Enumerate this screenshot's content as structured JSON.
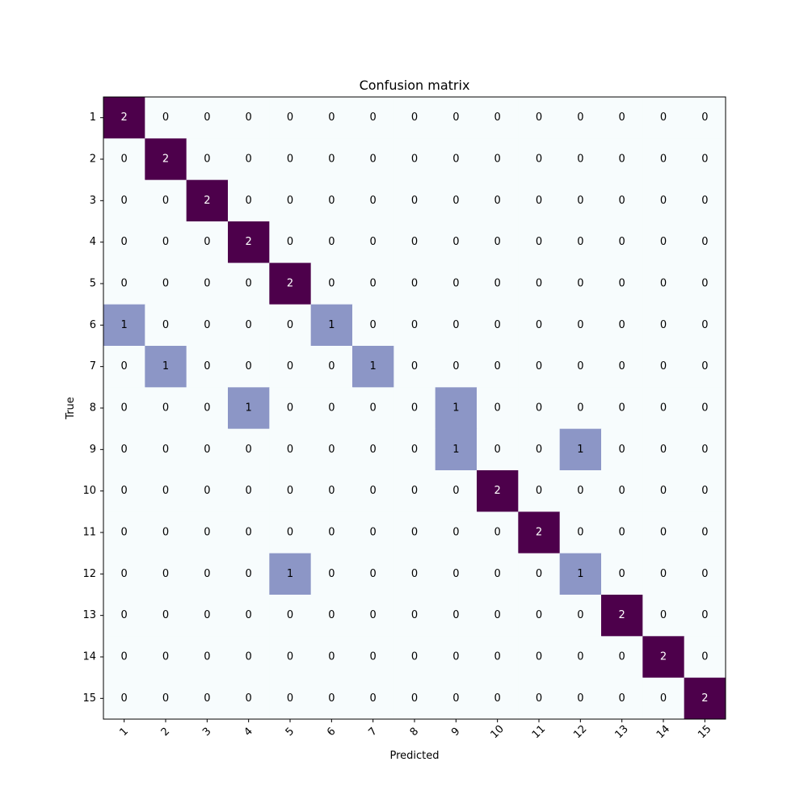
{
  "chart_data": {
    "type": "heatmap",
    "title": "Confusion matrix",
    "xlabel": "Predicted",
    "ylabel": "True",
    "x_categories": [
      "1",
      "2",
      "3",
      "4",
      "5",
      "6",
      "7",
      "8",
      "9",
      "10",
      "11",
      "12",
      "13",
      "14",
      "15"
    ],
    "y_categories": [
      "1",
      "2",
      "3",
      "4",
      "5",
      "6",
      "7",
      "8",
      "9",
      "10",
      "11",
      "12",
      "13",
      "14",
      "15"
    ],
    "values": [
      [
        2,
        0,
        0,
        0,
        0,
        0,
        0,
        0,
        0,
        0,
        0,
        0,
        0,
        0,
        0
      ],
      [
        0,
        2,
        0,
        0,
        0,
        0,
        0,
        0,
        0,
        0,
        0,
        0,
        0,
        0,
        0
      ],
      [
        0,
        0,
        2,
        0,
        0,
        0,
        0,
        0,
        0,
        0,
        0,
        0,
        0,
        0,
        0
      ],
      [
        0,
        0,
        0,
        2,
        0,
        0,
        0,
        0,
        0,
        0,
        0,
        0,
        0,
        0,
        0
      ],
      [
        0,
        0,
        0,
        0,
        2,
        0,
        0,
        0,
        0,
        0,
        0,
        0,
        0,
        0,
        0
      ],
      [
        1,
        0,
        0,
        0,
        0,
        1,
        0,
        0,
        0,
        0,
        0,
        0,
        0,
        0,
        0
      ],
      [
        0,
        1,
        0,
        0,
        0,
        0,
        1,
        0,
        0,
        0,
        0,
        0,
        0,
        0,
        0
      ],
      [
        0,
        0,
        0,
        1,
        0,
        0,
        0,
        0,
        1,
        0,
        0,
        0,
        0,
        0,
        0
      ],
      [
        0,
        0,
        0,
        0,
        0,
        0,
        0,
        0,
        1,
        0,
        0,
        1,
        0,
        0,
        0
      ],
      [
        0,
        0,
        0,
        0,
        0,
        0,
        0,
        0,
        0,
        2,
        0,
        0,
        0,
        0,
        0
      ],
      [
        0,
        0,
        0,
        0,
        0,
        0,
        0,
        0,
        0,
        0,
        2,
        0,
        0,
        0,
        0
      ],
      [
        0,
        0,
        0,
        0,
        1,
        0,
        0,
        0,
        0,
        0,
        0,
        1,
        0,
        0,
        0
      ],
      [
        0,
        0,
        0,
        0,
        0,
        0,
        0,
        0,
        0,
        0,
        0,
        0,
        2,
        0,
        0
      ],
      [
        0,
        0,
        0,
        0,
        0,
        0,
        0,
        0,
        0,
        0,
        0,
        0,
        0,
        2,
        0
      ],
      [
        0,
        0,
        0,
        0,
        0,
        0,
        0,
        0,
        0,
        0,
        0,
        0,
        0,
        0,
        2
      ]
    ],
    "colormap": "BuPu",
    "value_colors": {
      "0": "#f7fcfd",
      "1": "#8c96c6",
      "2": "#4d004b"
    },
    "text_colors": {
      "light": "#ffffff",
      "dark": "#000000"
    },
    "x_tick_rotation_deg": 45,
    "grid": false,
    "legend": "none"
  }
}
